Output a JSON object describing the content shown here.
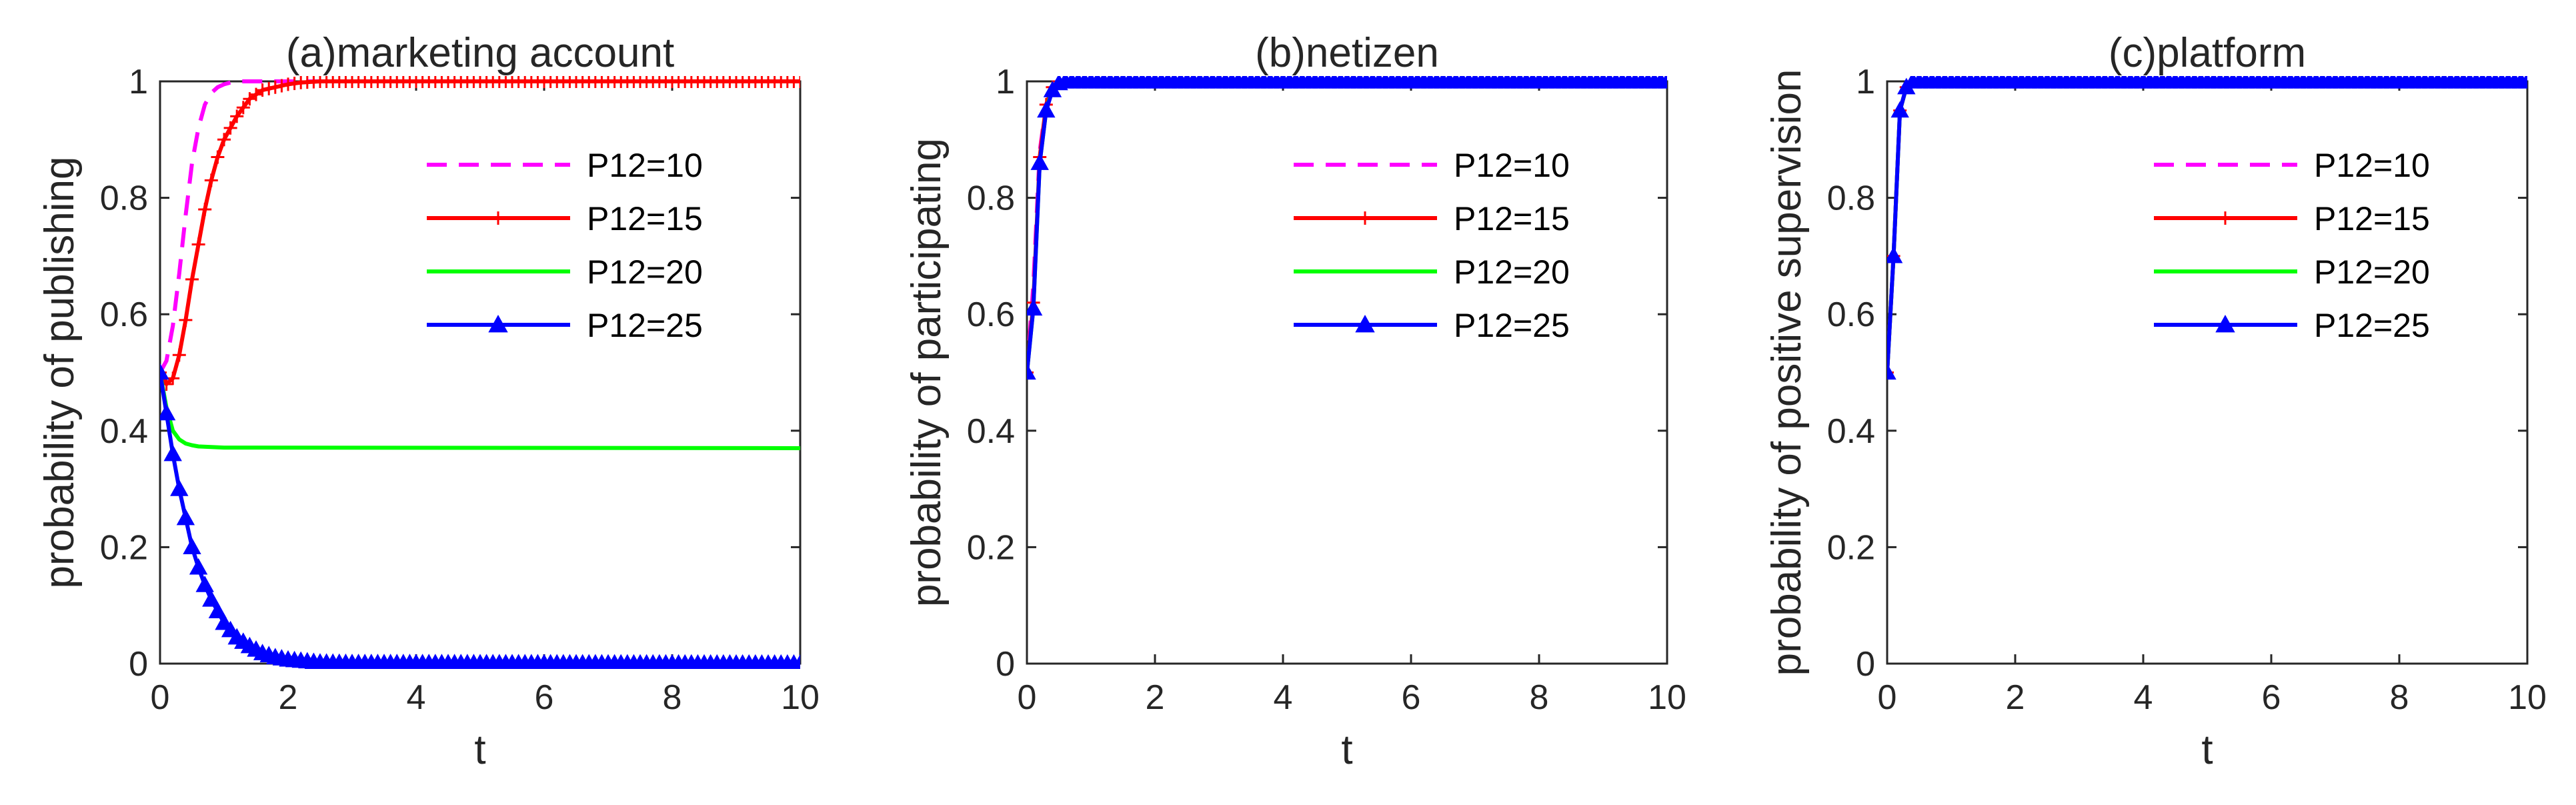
{
  "colors": {
    "P12=10": "#ff00ff",
    "P12=15": "#ff0000",
    "P12=20": "#00ff00",
    "P12=25": "#0000ff",
    "axes": "#262626"
  },
  "chart_data": [
    {
      "type": "line",
      "title": "(a)marketing account",
      "xlabel": "t",
      "ylabel": "probability of publishing",
      "xlim": [
        0,
        10
      ],
      "ylim": [
        0,
        1
      ],
      "xticks": [
        "0",
        "2",
        "4",
        "6",
        "8",
        "10"
      ],
      "yticks": [
        "0",
        "0.2",
        "0.4",
        "0.6",
        "0.8",
        "1"
      ],
      "legend_position": "top-right",
      "series": [
        {
          "name": "P12=10",
          "style": "dashed",
          "marker": "none",
          "x": [
            0,
            0.1,
            0.2,
            0.3,
            0.4,
            0.5,
            0.6,
            0.7,
            0.8,
            0.9,
            1.0,
            1.1,
            1.2,
            1.3,
            1.5,
            10
          ],
          "y": [
            0.5,
            0.52,
            0.58,
            0.67,
            0.77,
            0.86,
            0.92,
            0.96,
            0.98,
            0.99,
            0.995,
            0.998,
            1.0,
            1.0,
            1.0,
            1.0
          ]
        },
        {
          "name": "P12=15",
          "style": "solid",
          "marker": "plus",
          "x": [
            0,
            0.1,
            0.2,
            0.3,
            0.4,
            0.5,
            0.6,
            0.7,
            0.8,
            0.9,
            1.0,
            1.2,
            1.4,
            1.6,
            1.8,
            2.0,
            2.2,
            2.5,
            3.0,
            10
          ],
          "y": [
            0.5,
            0.48,
            0.49,
            0.53,
            0.59,
            0.66,
            0.72,
            0.78,
            0.83,
            0.87,
            0.9,
            0.94,
            0.97,
            0.985,
            0.99,
            0.995,
            0.998,
            1.0,
            1.0,
            1.0
          ]
        },
        {
          "name": "P12=20",
          "style": "solid",
          "marker": "none",
          "x": [
            0,
            0.1,
            0.2,
            0.3,
            0.4,
            0.5,
            0.6,
            0.8,
            1.0,
            10
          ],
          "y": [
            0.5,
            0.44,
            0.4,
            0.385,
            0.378,
            0.375,
            0.373,
            0.372,
            0.371,
            0.37
          ]
        },
        {
          "name": "P12=25",
          "style": "solid",
          "marker": "triangle",
          "x": [
            0,
            0.1,
            0.2,
            0.3,
            0.4,
            0.5,
            0.6,
            0.7,
            0.8,
            0.9,
            1.0,
            1.2,
            1.4,
            1.6,
            1.8,
            2.0,
            2.5,
            3.0,
            10
          ],
          "y": [
            0.5,
            0.43,
            0.36,
            0.3,
            0.25,
            0.2,
            0.165,
            0.135,
            0.11,
            0.09,
            0.07,
            0.045,
            0.03,
            0.018,
            0.011,
            0.007,
            0.002,
            0.001,
            0.0
          ]
        }
      ]
    },
    {
      "type": "line",
      "title": "(b)netizen",
      "xlabel": "t",
      "ylabel": "probability of participating",
      "xlim": [
        0,
        10
      ],
      "ylim": [
        0,
        1
      ],
      "xticks": [
        "0",
        "2",
        "4",
        "6",
        "8",
        "10"
      ],
      "yticks": [
        "0",
        "0.2",
        "0.4",
        "0.6",
        "0.8",
        "1"
      ],
      "legend_position": "top-right",
      "series": [
        {
          "name": "P12=10",
          "style": "dashed",
          "marker": "none",
          "x": [
            0,
            0.1,
            0.2,
            0.3,
            0.4,
            0.5,
            0.6,
            0.7,
            10
          ],
          "y": [
            0.5,
            0.65,
            0.88,
            0.96,
            0.99,
            1.0,
            1.0,
            1.0,
            1.0
          ]
        },
        {
          "name": "P12=15",
          "style": "solid",
          "marker": "plus",
          "x": [
            0,
            0.1,
            0.2,
            0.3,
            0.4,
            0.5,
            0.6,
            0.7,
            10
          ],
          "y": [
            0.5,
            0.62,
            0.87,
            0.96,
            0.99,
            1.0,
            1.0,
            1.0,
            1.0
          ]
        },
        {
          "name": "P12=20",
          "style": "solid",
          "marker": "none",
          "x": [
            0,
            0.1,
            0.2,
            0.3,
            0.4,
            0.5,
            0.6,
            0.7,
            10
          ],
          "y": [
            0.5,
            0.61,
            0.86,
            0.95,
            0.99,
            1.0,
            1.0,
            1.0,
            1.0
          ]
        },
        {
          "name": "P12=25",
          "style": "solid",
          "marker": "triangle",
          "x": [
            0,
            0.1,
            0.2,
            0.3,
            0.4,
            0.5,
            0.6,
            0.7,
            10
          ],
          "y": [
            0.5,
            0.61,
            0.86,
            0.95,
            0.985,
            0.997,
            1.0,
            1.0,
            1.0
          ]
        }
      ]
    },
    {
      "type": "line",
      "title": "(c)platform",
      "xlabel": "t",
      "ylabel": "probability of positive supervision",
      "xlim": [
        0,
        10
      ],
      "ylim": [
        0,
        1
      ],
      "xticks": [
        "0",
        "2",
        "4",
        "6",
        "8",
        "10"
      ],
      "yticks": [
        "0",
        "0.2",
        "0.4",
        "0.6",
        "0.8",
        "1"
      ],
      "legend_position": "top-right",
      "series": [
        {
          "name": "P12=10",
          "style": "dashed",
          "marker": "none",
          "x": [
            0,
            0.1,
            0.2,
            0.3,
            0.4,
            0.5,
            10
          ],
          "y": [
            0.5,
            0.7,
            0.95,
            0.99,
            1.0,
            1.0,
            1.0
          ]
        },
        {
          "name": "P12=15",
          "style": "solid",
          "marker": "plus",
          "x": [
            0,
            0.1,
            0.2,
            0.3,
            0.4,
            0.5,
            10
          ],
          "y": [
            0.5,
            0.7,
            0.95,
            0.99,
            1.0,
            1.0,
            1.0
          ]
        },
        {
          "name": "P12=20",
          "style": "solid",
          "marker": "none",
          "x": [
            0,
            0.1,
            0.2,
            0.3,
            0.4,
            0.5,
            10
          ],
          "y": [
            0.5,
            0.7,
            0.95,
            0.99,
            1.0,
            1.0,
            1.0
          ]
        },
        {
          "name": "P12=25",
          "style": "solid",
          "marker": "triangle",
          "x": [
            0,
            0.1,
            0.2,
            0.3,
            0.4,
            0.5,
            10
          ],
          "y": [
            0.5,
            0.7,
            0.95,
            0.99,
            1.0,
            1.0,
            1.0
          ]
        }
      ]
    }
  ]
}
